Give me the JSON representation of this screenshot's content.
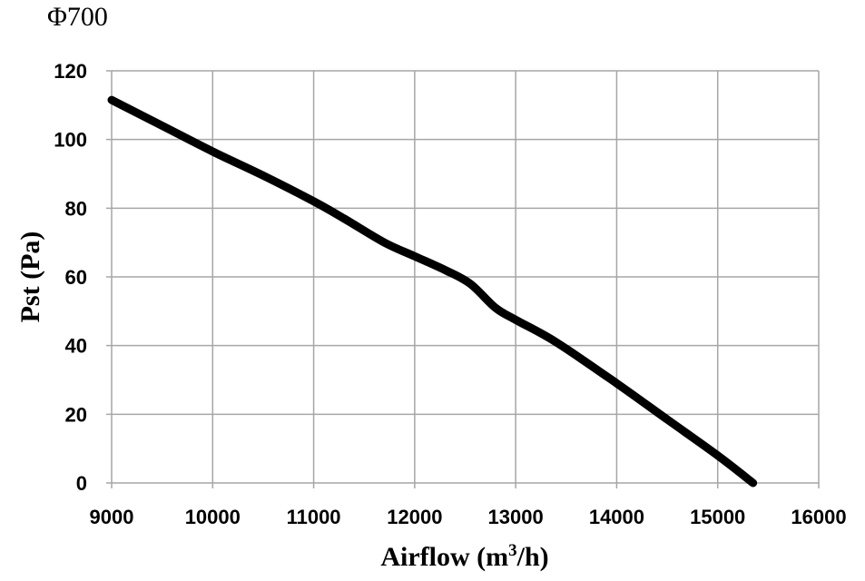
{
  "chart_data": {
    "type": "line",
    "title": "Φ700",
    "xlabel_main": "Airflow (m",
    "xlabel_sup": "3",
    "xlabel_end": "/h)",
    "ylabel": "Pst (Pa)",
    "xlim": [
      9000,
      16000
    ],
    "ylim": [
      0,
      120
    ],
    "x_ticks": [
      9000,
      10000,
      11000,
      12000,
      13000,
      14000,
      15000,
      16000
    ],
    "y_ticks": [
      0,
      20,
      40,
      60,
      80,
      100,
      120
    ],
    "grid": true,
    "series": [
      {
        "color": "#000000",
        "x": [
          9000,
          9500,
          10000,
          10500,
          11000,
          11300,
          11700,
          12000,
          12300,
          12550,
          12800,
          13000,
          13400,
          14000,
          14500,
          15000,
          15350
        ],
        "y": [
          111.5,
          104,
          96.5,
          89.5,
          82,
          77,
          70,
          66,
          62,
          58,
          51,
          47.5,
          41,
          29,
          18.5,
          8,
          0
        ]
      }
    ]
  }
}
